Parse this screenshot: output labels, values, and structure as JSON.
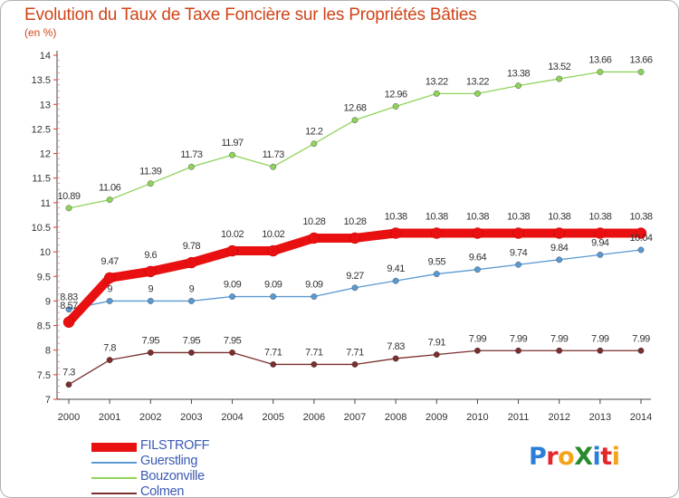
{
  "title": "Evolution du Taux de Taxe Foncière sur les Propriétés Bâties",
  "unit_label": "(en %)",
  "logo": {
    "text": "ProXiti",
    "letters": [
      [
        "P",
        "#2c7fd8"
      ],
      [
        "r",
        "#e5262a"
      ],
      [
        "o",
        "#f2a41b"
      ],
      [
        "X",
        "#2a8a2f"
      ],
      [
        "i",
        "#2c7fd8"
      ],
      [
        "t",
        "#e5262a"
      ],
      [
        "i",
        "#f2a41b"
      ]
    ]
  },
  "chart_data": {
    "type": "line",
    "title": "Evolution du Taux de Taxe Foncière sur les Propriétés Bâties",
    "ylabel": "(en %)",
    "xlabel": "",
    "x": [
      "2000",
      "2001",
      "2002",
      "2003",
      "2004",
      "2005",
      "2006",
      "2007",
      "2008",
      "2009",
      "2010",
      "2011",
      "2012",
      "2013",
      "2014"
    ],
    "ylim": [
      7,
      14
    ],
    "yticks": [
      "7",
      "7.5",
      "8",
      "8.5",
      "9",
      "9.5",
      "10",
      "10.5",
      "11",
      "11.5",
      "12",
      "12.5",
      "13",
      "13.5",
      "14"
    ],
    "grid": false,
    "legend_position": "bottom-left",
    "series": [
      {
        "name": "FILSTROFF",
        "color": "#e81010",
        "values": [
          8.57,
          9.47,
          9.6,
          9.78,
          10.02,
          10.02,
          10.28,
          10.28,
          10.38,
          10.38,
          10.38,
          10.38,
          10.38,
          10.38,
          10.38
        ],
        "labels": [
          "8.57",
          "9.47",
          "9.6",
          "9.78",
          "10.02",
          "10.02",
          "10.28",
          "10.28",
          "10.38",
          "10.38",
          "10.38",
          "10.38",
          "10.38",
          "10.38",
          "10.38"
        ]
      },
      {
        "name": "Guerstling",
        "color": "#5a9ad3",
        "values": [
          8.83,
          9,
          9,
          9,
          9.09,
          9.09,
          9.09,
          9.27,
          9.41,
          9.55,
          9.64,
          9.74,
          9.84,
          9.94,
          10.04
        ],
        "labels": [
          "8.83",
          "9",
          "9",
          "9",
          "9.09",
          "9.09",
          "9.09",
          "9.27",
          "9.41",
          "9.55",
          "9.64",
          "9.74",
          "9.84",
          "9.94",
          "10.04"
        ]
      },
      {
        "name": "Bouzonville",
        "color": "#8fd35b",
        "values": [
          10.89,
          11.06,
          11.39,
          11.73,
          11.97,
          11.73,
          12.2,
          12.68,
          12.96,
          13.22,
          13.22,
          13.38,
          13.52,
          13.66,
          13.66
        ],
        "labels": [
          "10.89",
          "11.06",
          "11.39",
          "11.73",
          "11.97",
          "11.73",
          "12.2",
          "12.68",
          "12.96",
          "13.22",
          "13.22",
          "13.38",
          "13.52",
          "13.66",
          "13.66"
        ]
      },
      {
        "name": "Colmen",
        "color": "#7a2e2e",
        "values": [
          7.3,
          7.8,
          7.95,
          7.95,
          7.95,
          7.71,
          7.71,
          7.71,
          7.83,
          7.91,
          7.99,
          7.99,
          7.99,
          7.99,
          7.99
        ],
        "labels": [
          "7.3",
          "7.8",
          "7.95",
          "7.95",
          "7.95",
          "7.71",
          "7.71",
          "7.71",
          "7.83",
          "7.91",
          "7.99",
          "7.99",
          "7.99",
          "7.99",
          "7.99"
        ]
      }
    ]
  }
}
